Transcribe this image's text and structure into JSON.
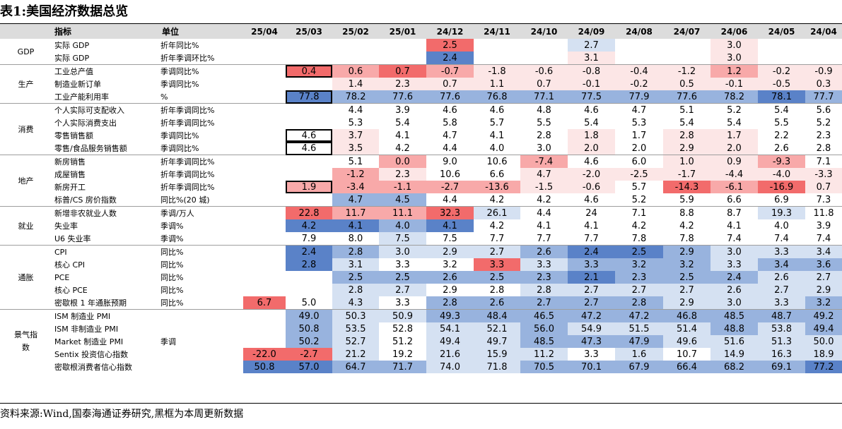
{
  "title": "表1:美国经济数据总览",
  "source": "资料来源:Wind,国泰海通证券研究,黑框为本周更新数据",
  "columns": {
    "indicator": "指标",
    "unit": "单位",
    "months": [
      "25/04",
      "25/03",
      "25/02",
      "25/01",
      "24/12",
      "24/11",
      "24/10",
      "24/09",
      "24/08",
      "24/07",
      "24/06",
      "24/05",
      "24/04"
    ]
  },
  "legend": {
    "frame_meaning": "黑框为本周更新数据"
  },
  "colors": {
    "red_strong": "#f26b6b",
    "red_mid": "#f8a9a9",
    "red_light": "#fce6e6",
    "blue_strong": "#5a82c8",
    "blue_mid": "#98b3de",
    "blue_light": "#d5e1f2",
    "header_bg": "#dcdcdc"
  },
  "groups": [
    {
      "category": "GDP",
      "rows": [
        {
          "name": "实际 GDP",
          "unit": "折年同比%",
          "values": [
            "",
            "",
            "",
            "",
            "2.5",
            "",
            "",
            "2.7",
            "",
            "",
            "3.0",
            "",
            ""
          ],
          "colors": [
            "",
            "",
            "",
            "",
            "r2",
            "",
            "",
            "b0",
            "",
            "",
            "r0",
            "",
            ""
          ]
        },
        {
          "name": "实际 GDP",
          "unit": "折年季调环比%",
          "values": [
            "",
            "",
            "",
            "",
            "2.4",
            "",
            "",
            "3.1",
            "",
            "",
            "3.0",
            "",
            ""
          ],
          "colors": [
            "",
            "",
            "",
            "",
            "b2",
            "",
            "",
            "r0",
            "",
            "",
            "r0",
            "",
            ""
          ]
        }
      ]
    },
    {
      "category": "生产",
      "rows": [
        {
          "name": "工业总产值",
          "unit": "季调同比%",
          "values": [
            "",
            "0.4",
            "0.6",
            "0.7",
            "-0.7",
            "-1.8",
            "-0.6",
            "-0.8",
            "-0.4",
            "-1.2",
            "1.2",
            "-0.2",
            "-0.9"
          ],
          "colors": [
            "",
            "r2",
            "r1",
            "r2",
            "r1",
            "r0",
            "r0",
            "r0",
            "r0",
            "r0",
            "r1",
            "r0",
            "r0"
          ],
          "framed": [
            1
          ]
        },
        {
          "name": "制造业新订单",
          "unit": "季调同比%",
          "values": [
            "",
            "",
            "1.4",
            "2.3",
            "0.7",
            "1.1",
            "0.7",
            "-0.1",
            "-0.2",
            "0.5",
            "-0.1",
            "-0.5",
            "0.3"
          ],
          "colors": [
            "",
            "",
            "r0",
            "r0",
            "r0",
            "r0",
            "r0",
            "r0",
            "r0",
            "r0",
            "r0",
            "r0",
            "r0"
          ]
        },
        {
          "name": "工业产能利用率",
          "unit": "%",
          "values": [
            "",
            "77.8",
            "78.2",
            "77.6",
            "77.6",
            "76.8",
            "77.1",
            "77.5",
            "77.9",
            "77.6",
            "78.2",
            "78.1",
            "77.7"
          ],
          "colors": [
            "",
            "b2",
            "b1",
            "b1",
            "b1",
            "b1",
            "b1",
            "b1",
            "b1",
            "b1",
            "b1",
            "b2",
            "b1"
          ],
          "framed": [
            1
          ]
        }
      ]
    },
    {
      "category": "消费",
      "rows": [
        {
          "name": "个人实际可支配收入",
          "unit": "折年季调同比%",
          "values": [
            "",
            "",
            "4.4",
            "3.9",
            "4.6",
            "4.6",
            "4.8",
            "4.6",
            "4.7",
            "5.1",
            "5.2",
            "5.4",
            "5.6"
          ],
          "colors": [
            "",
            "",
            "",
            "",
            "",
            "",
            "",
            "",
            "",
            "",
            "",
            "",
            ""
          ]
        },
        {
          "name": "个人实际消费支出",
          "unit": "折年季调同比%",
          "values": [
            "",
            "",
            "5.3",
            "5.4",
            "5.8",
            "5.7",
            "5.5",
            "5.4",
            "5.3",
            "5.4",
            "5.4",
            "5.5",
            "5.2"
          ],
          "colors": [
            "",
            "",
            "",
            "",
            "",
            "",
            "",
            "",
            "",
            "",
            "",
            "",
            ""
          ]
        },
        {
          "name": "零售销售额",
          "unit": "季调同比%",
          "values": [
            "",
            "4.6",
            "3.7",
            "4.1",
            "4.7",
            "4.1",
            "2.8",
            "1.8",
            "1.7",
            "2.8",
            "1.7",
            "2.2",
            "2.3"
          ],
          "colors": [
            "",
            "",
            "r0",
            "",
            "",
            "",
            "",
            "r0",
            "",
            "r0",
            "r0",
            "",
            ""
          ],
          "framed": [
            1
          ]
        },
        {
          "name": "零售/食品服务销售额",
          "unit": "季调同比%",
          "values": [
            "",
            "4.6",
            "3.5",
            "4.2",
            "4.4",
            "4.0",
            "3.0",
            "2.0",
            "2.0",
            "2.9",
            "2.0",
            "2.6",
            "2.8"
          ],
          "colors": [
            "",
            "",
            "r0",
            "",
            "",
            "",
            "",
            "r0",
            "",
            "r0",
            "r0",
            "",
            ""
          ],
          "framed": [
            1
          ]
        }
      ]
    },
    {
      "category": "地产",
      "rows": [
        {
          "name": "新房销售",
          "unit": "折年季调同比%",
          "values": [
            "",
            "",
            "5.1",
            "0.0",
            "9.0",
            "10.6",
            "-7.4",
            "4.6",
            "6.0",
            "1.0",
            "0.9",
            "-9.3",
            "7.1"
          ],
          "colors": [
            "",
            "",
            "",
            "r1",
            "",
            "",
            "r1",
            "",
            "",
            "r0",
            "r0",
            "r1",
            ""
          ]
        },
        {
          "name": "成屋销售",
          "unit": "折年季调同比%",
          "values": [
            "",
            "",
            "-1.2",
            "2.3",
            "10.6",
            "6.6",
            "4.7",
            "-2.0",
            "-2.5",
            "-1.7",
            "-4.4",
            "-4.0",
            "-3.3"
          ],
          "colors": [
            "",
            "",
            "r1",
            "r0",
            "",
            "",
            "r0",
            "r0",
            "r0",
            "r0",
            "r0",
            "r0",
            "r0"
          ]
        },
        {
          "name": "新房开工",
          "unit": "折年季调同比%",
          "values": [
            "",
            "1.9",
            "-3.4",
            "-1.1",
            "-2.7",
            "-13.6",
            "-1.5",
            "-0.6",
            "5.7",
            "-14.3",
            "-6.1",
            "-16.9",
            "0.7"
          ],
          "colors": [
            "",
            "r1",
            "r1",
            "r1",
            "r1",
            "r1",
            "r0",
            "r0",
            "",
            "r2",
            "r1",
            "r2",
            "r0"
          ],
          "framed": [
            1
          ]
        },
        {
          "name": "标普/CS 房价指数",
          "unit": "同比%(20 城)",
          "values": [
            "",
            "",
            "4.7",
            "4.5",
            "4.4",
            "4.2",
            "4.2",
            "4.6",
            "5.2",
            "5.9",
            "6.6",
            "6.9",
            "7.3"
          ],
          "colors": [
            "",
            "",
            "b1",
            "b1",
            "",
            "",
            "",
            "",
            "",
            "",
            "",
            "",
            ""
          ]
        }
      ]
    },
    {
      "category": "就业",
      "rows": [
        {
          "name": "新增非农就业人数",
          "unit": "季调/万人",
          "values": [
            "",
            "22.8",
            "11.7",
            "11.1",
            "32.3",
            "26.1",
            "4.4",
            "24",
            "7.1",
            "8.8",
            "8.7",
            "19.3",
            "11.8"
          ],
          "colors": [
            "",
            "r2",
            "r1",
            "r1",
            "r2",
            "b0",
            "",
            "",
            "",
            "",
            "",
            "b0",
            ""
          ]
        },
        {
          "name": "失业率",
          "unit": "季调%",
          "values": [
            "",
            "4.2",
            "4.1",
            "4.0",
            "4.1",
            "4.2",
            "4.1",
            "4.1",
            "4.2",
            "4.2",
            "4.1",
            "4.0",
            "3.9"
          ],
          "colors": [
            "",
            "b2",
            "b2",
            "b1",
            "b2",
            "",
            "",
            "",
            "",
            "",
            "",
            "",
            ""
          ]
        },
        {
          "name": "U6 失业率",
          "unit": "季调%",
          "values": [
            "",
            "7.9",
            "8.0",
            "7.5",
            "7.5",
            "7.7",
            "7.7",
            "7.7",
            "7.8",
            "7.8",
            "7.4",
            "7.4",
            "7.4"
          ],
          "colors": [
            "",
            "",
            "",
            "b0",
            "",
            "",
            "",
            "",
            "",
            "",
            "",
            "",
            ""
          ]
        }
      ]
    },
    {
      "category": "通胀",
      "rows": [
        {
          "name": "CPI",
          "unit": "同比%",
          "values": [
            "",
            "2.4",
            "2.8",
            "3.0",
            "2.9",
            "2.7",
            "2.6",
            "2.4",
            "2.5",
            "2.9",
            "3.0",
            "3.3",
            "3.4"
          ],
          "colors": [
            "",
            "b2",
            "b1",
            "b0",
            "b0",
            "b0",
            "b1",
            "b2",
            "b2",
            "b1",
            "b0",
            "b0",
            "b0"
          ]
        },
        {
          "name": "核心 CPI",
          "unit": "同比%",
          "values": [
            "",
            "2.8",
            "3.1",
            "3.3",
            "3.2",
            "3.3",
            "3.3",
            "3.3",
            "3.2",
            "3.2",
            "3.3",
            "3.4",
            "3.6"
          ],
          "colors": [
            "",
            "b2",
            "b0",
            "",
            "",
            "r2",
            "b0",
            "b1",
            "b1",
            "b1",
            "b0",
            "b1",
            "b1"
          ]
        },
        {
          "name": "PCE",
          "unit": "同比%",
          "values": [
            "",
            "",
            "2.5",
            "2.5",
            "2.6",
            "2.5",
            "2.3",
            "2.1",
            "2.3",
            "2.5",
            "2.4",
            "2.6",
            "2.7"
          ],
          "colors": [
            "",
            "",
            "b1",
            "b1",
            "b1",
            "b1",
            "b1",
            "b2",
            "b1",
            "b1",
            "b1",
            "b0",
            "b0"
          ]
        },
        {
          "name": "核心 PCE",
          "unit": "同比%",
          "values": [
            "",
            "",
            "2.8",
            "2.7",
            "2.9",
            "2.8",
            "2.8",
            "2.7",
            "2.7",
            "2.7",
            "2.6",
            "2.7",
            "2.9"
          ],
          "colors": [
            "",
            "",
            "b0",
            "b0",
            "",
            "",
            "b0",
            "b0",
            "b0",
            "b0",
            "b0",
            "b0",
            "b0"
          ]
        },
        {
          "name": "密歇根 1 年通胀预期",
          "unit": "同比%",
          "values": [
            "6.7",
            "5.0",
            "4.3",
            "3.3",
            "2.8",
            "2.6",
            "2.7",
            "2.7",
            "2.8",
            "2.9",
            "3.0",
            "3.3",
            "3.2"
          ],
          "colors": [
            "r2",
            "",
            "b0",
            "",
            "b1",
            "b1",
            "b1",
            "b1",
            "b1",
            "b0",
            "b0",
            "b0",
            "b1"
          ]
        }
      ]
    },
    {
      "category": "景气指数",
      "rows": [
        {
          "name": "ISM 制造业 PMI",
          "unit": "",
          "values": [
            "",
            "49.0",
            "50.3",
            "50.9",
            "49.3",
            "48.4",
            "46.5",
            "47.2",
            "47.2",
            "46.8",
            "48.5",
            "48.7",
            "49.2"
          ],
          "colors": [
            "",
            "b1",
            "b0",
            "b0",
            "b1",
            "b1",
            "b1",
            "b1",
            "b1",
            "b1",
            "b1",
            "b1",
            "b1"
          ]
        },
        {
          "name": "ISM 非制造业 PMI",
          "unit": "",
          "values": [
            "",
            "50.8",
            "53.5",
            "52.8",
            "54.1",
            "52.1",
            "56.0",
            "54.9",
            "51.5",
            "51.4",
            "48.8",
            "53.8",
            "49.4"
          ],
          "colors": [
            "",
            "b1",
            "b0",
            "",
            "b0",
            "b0",
            "b1",
            "b0",
            "b0",
            "b0",
            "b1",
            "b0",
            "b1"
          ]
        },
        {
          "name": "Market 制造业 PMI",
          "unit": "季调",
          "values": [
            "",
            "50.2",
            "52.7",
            "51.2",
            "49.4",
            "49.7",
            "48.5",
            "47.3",
            "47.9",
            "49.6",
            "51.6",
            "51.3",
            "50.0"
          ],
          "colors": [
            "",
            "b1",
            "b0",
            "",
            "b0",
            "b0",
            "b1",
            "b1",
            "b1",
            "b0",
            "b0",
            "b0",
            "b0"
          ]
        },
        {
          "name": "Sentix 投资信心指数",
          "unit": "",
          "values": [
            "-22.0",
            "-2.7",
            "21.2",
            "19.2",
            "21.6",
            "15.9",
            "11.2",
            "3.3",
            "1.6",
            "10.7",
            "14.9",
            "16.3",
            "18.9"
          ],
          "colors": [
            "r2",
            "r2",
            "b0",
            "",
            "b0",
            "b0",
            "b0",
            "",
            "b0",
            "",
            "b0",
            "b0",
            "b0"
          ]
        },
        {
          "name": "密歇根消费者信心指数",
          "unit": "",
          "values": [
            "50.8",
            "57.0",
            "64.7",
            "71.7",
            "74.0",
            "71.8",
            "70.5",
            "70.1",
            "67.9",
            "66.4",
            "68.2",
            "69.1",
            "77.2"
          ],
          "colors": [
            "b2",
            "b2",
            "b1",
            "b1",
            "b0",
            "b0",
            "b1",
            "b1",
            "b1",
            "b1",
            "b1",
            "b1",
            "b2"
          ]
        }
      ]
    }
  ]
}
